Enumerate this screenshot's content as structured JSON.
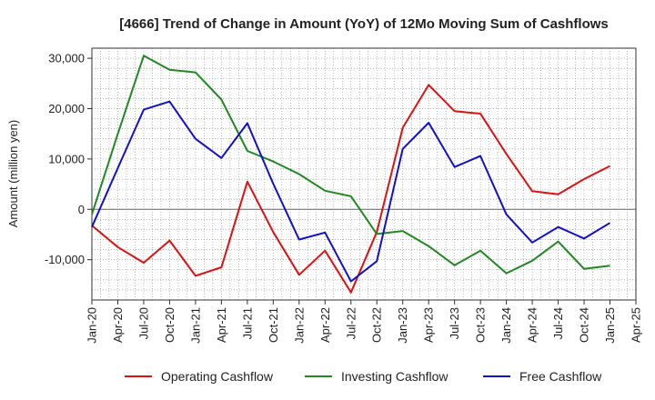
{
  "chart_data": {
    "type": "line",
    "title": "[4666]  Trend of Change in Amount (YoY) of 12Mo Moving Sum of Cashflows",
    "xlabel": "",
    "ylabel": "Amount (million yen)",
    "ylim": [
      -18000,
      32000
    ],
    "yticks": [
      30000,
      20000,
      10000,
      0,
      -10000
    ],
    "ytick_labels": [
      "30,000",
      "20,000",
      "10,000",
      "0",
      "-10,000"
    ],
    "categories": [
      "Jan-20",
      "Apr-20",
      "Jul-20",
      "Oct-20",
      "Jan-21",
      "Apr-21",
      "Jul-21",
      "Oct-21",
      "Jan-22",
      "Apr-22",
      "Jul-22",
      "Oct-22",
      "Jan-23",
      "Apr-23",
      "Jul-23",
      "Oct-23",
      "Jan-24",
      "Apr-24",
      "Jul-24",
      "Oct-24",
      "Jan-25",
      "Apr-25"
    ],
    "grid": true,
    "legend_position": "bottom",
    "series": [
      {
        "name": "Operating Cashflow",
        "color": "#dd1111",
        "values": [
          -3200,
          -7500,
          -10600,
          -6200,
          -13200,
          -11500,
          5500,
          -4500,
          -13000,
          -8200,
          -16500,
          -4500,
          16200,
          24700,
          19500,
          19000,
          11000,
          3600,
          3000,
          6000,
          8600,
          null
        ]
      },
      {
        "name": "Investing Cashflow",
        "color": "#228822",
        "values": [
          -1000,
          15000,
          30500,
          27700,
          27200,
          21800,
          11600,
          9500,
          7000,
          3700,
          2600,
          -4900,
          -4300,
          -7300,
          -11100,
          -8200,
          -12700,
          -10200,
          -6400,
          -11800,
          -11200,
          null
        ]
      },
      {
        "name": "Free Cashflow",
        "color": "#1111cc",
        "values": [
          -3500,
          8200,
          19800,
          21400,
          14000,
          10200,
          17100,
          5100,
          -6000,
          -4600,
          -14300,
          -10300,
          12000,
          17200,
          8400,
          10600,
          -1000,
          -6600,
          -3500,
          -5800,
          -2700,
          null
        ]
      }
    ]
  }
}
